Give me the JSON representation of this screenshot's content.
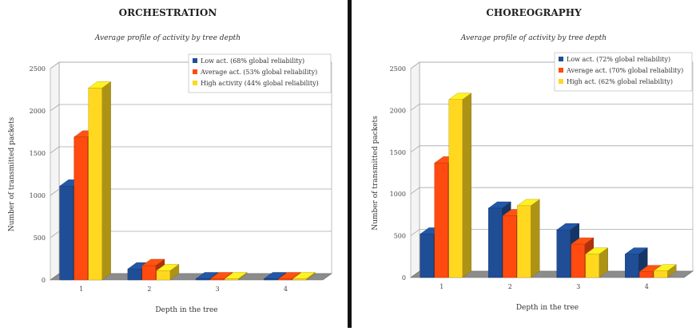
{
  "colors": {
    "low": "#1f4e96",
    "average": "#ff4a10",
    "high": "#ffd81f",
    "divider": "#111111"
  },
  "chart_data": [
    {
      "type": "bar",
      "title": "ORCHESTRATION",
      "subtitle": "Average profile of activity by tree depth",
      "xlabel": "Depth in the tree",
      "ylabel": "Number of transmitted packets",
      "ylim": [
        0,
        2500
      ],
      "yticks": [
        0,
        500,
        1000,
        1500,
        2000,
        2500
      ],
      "grid": true,
      "legend_position": "top-right",
      "style": "3d",
      "categories": [
        "1",
        "2",
        "3",
        "4"
      ],
      "series": [
        {
          "name": "Low act. (68% global reliability)",
          "color_key": "low",
          "values": [
            1110,
            130,
            5,
            0
          ]
        },
        {
          "name": "Average act. (53% global reliability)",
          "color_key": "average",
          "values": [
            1690,
            170,
            5,
            0
          ]
        },
        {
          "name": "High activity (44% global reliability)",
          "color_key": "high",
          "values": [
            2270,
            110,
            5,
            0
          ]
        }
      ]
    },
    {
      "type": "bar",
      "title": "CHOREOGRAPHY",
      "subtitle": "Average profile of activity by tree depth",
      "xlabel": "Depth in the tree",
      "ylabel": "Number of transmitted packets",
      "ylim": [
        0,
        2500
      ],
      "yticks": [
        0,
        500,
        1000,
        1500,
        2000,
        2500
      ],
      "grid": true,
      "legend_position": "top-right",
      "style": "3d",
      "categories": [
        "1",
        "2",
        "3",
        "4"
      ],
      "series": [
        {
          "name": "Low act. (72% global reliability)",
          "color_key": "low",
          "values": [
            520,
            830,
            570,
            280
          ]
        },
        {
          "name": "Average act. (70% global reliability)",
          "color_key": "average",
          "values": [
            1370,
            740,
            400,
            70
          ]
        },
        {
          "name": "High act. (62% global reliability)",
          "color_key": "high",
          "values": [
            2130,
            860,
            280,
            80
          ]
        }
      ]
    }
  ]
}
